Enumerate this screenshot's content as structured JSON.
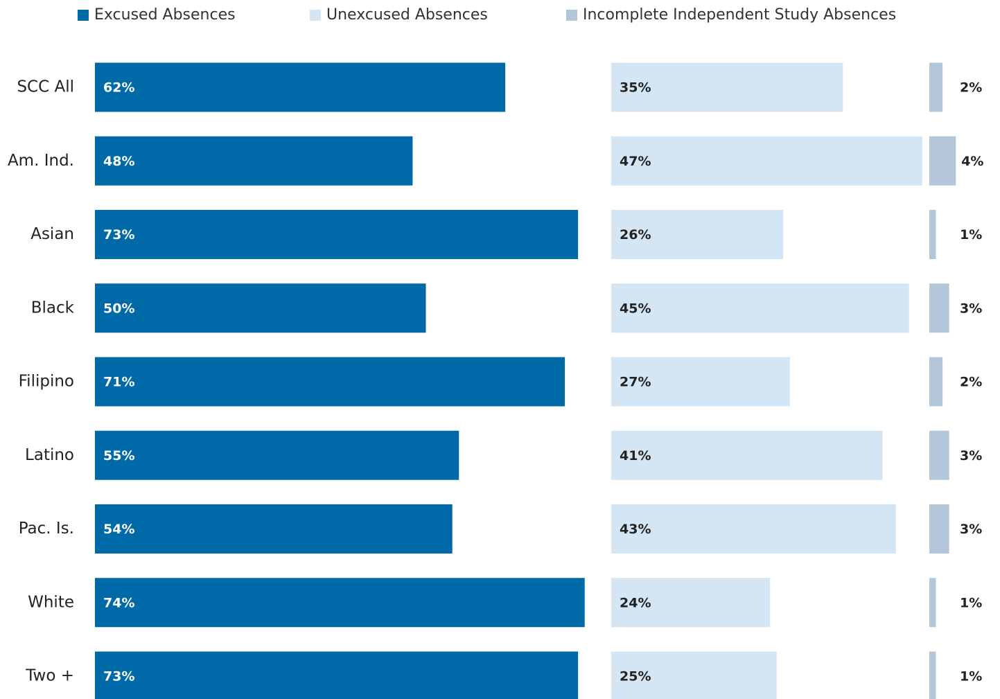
{
  "chart_data": {
    "type": "bar",
    "orientation": "horizontal",
    "categories": [
      "SCC All",
      "Am. Ind.",
      "Asian",
      "Black",
      "Filipino",
      "Latino",
      "Pac. Is.",
      "White",
      "Two +"
    ],
    "series": [
      {
        "name": "Excused Absences",
        "color": "#006aa8",
        "values": [
          62,
          48,
          73,
          50,
          71,
          55,
          54,
          74,
          73
        ],
        "value_labels": [
          "62%",
          "48%",
          "73%",
          "50%",
          "71%",
          "55%",
          "54%",
          "74%",
          "73%"
        ]
      },
      {
        "name": "Unexcused Absences",
        "color": "#d4e6f4",
        "values": [
          35,
          47,
          26,
          45,
          27,
          41,
          43,
          24,
          25
        ],
        "value_labels": [
          "35%",
          "47%",
          "26%",
          "45%",
          "27%",
          "41%",
          "43%",
          "24%",
          "25%"
        ]
      },
      {
        "name": "Incomplete Independent Study Absences",
        "color": "#b3c7d8",
        "values": [
          2,
          4,
          1,
          3,
          2,
          3,
          3,
          1,
          1
        ],
        "value_labels": [
          "2%",
          "4%",
          "1%",
          "3%",
          "2%",
          "3%",
          "3%",
          "1%",
          "1%"
        ]
      }
    ]
  }
}
